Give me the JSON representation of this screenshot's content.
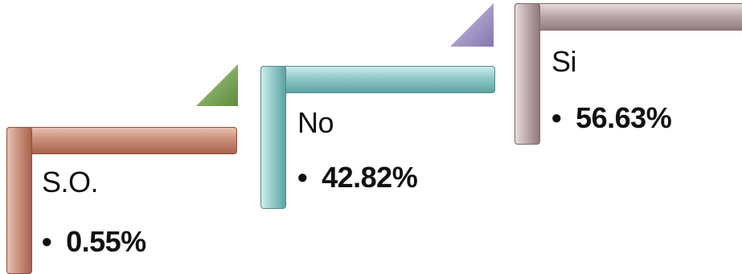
{
  "steps": [
    {
      "label": "S.O.",
      "bullet": "•",
      "value": "0.55%",
      "color": "#c98f7a"
    },
    {
      "label": "No",
      "bullet": "•",
      "value": "42.82%",
      "color": "#8fc9c7"
    },
    {
      "label": "Si",
      "bullet": "•",
      "value": "56.63%",
      "color": "#bba8aa"
    }
  ],
  "colors": {
    "triangle_green": "#7fa95c",
    "triangle_purple": "#a79ac6"
  }
}
